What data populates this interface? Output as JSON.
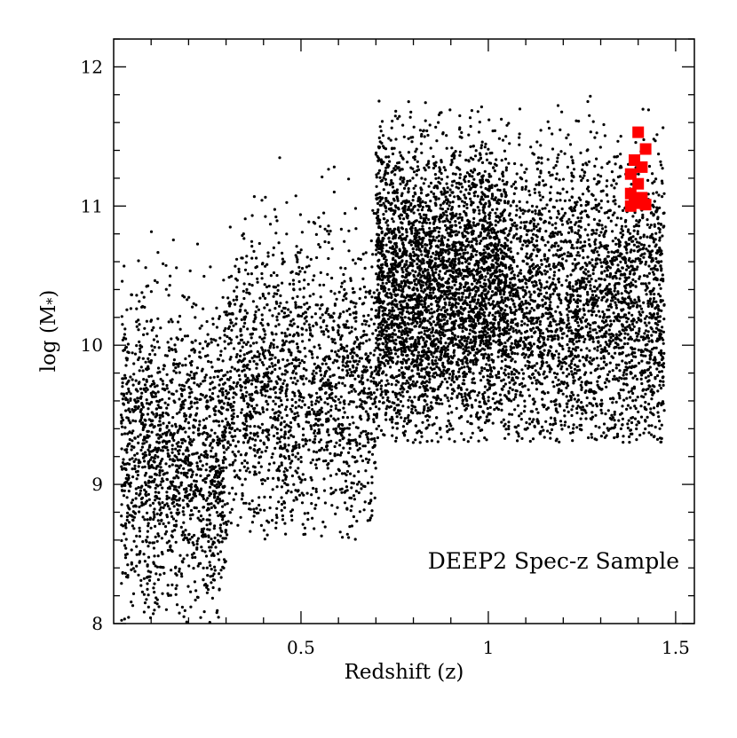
{
  "chart_data": {
    "type": "scatter",
    "xlabel": "Redshift (z)",
    "ylabel": "log (M*)",
    "xlim": [
      0.0,
      1.55
    ],
    "ylim": [
      8,
      12.2
    ],
    "x_ticks": [
      0.5,
      1,
      1.5
    ],
    "x_tick_labels": [
      "0.5",
      "1",
      "1.5"
    ],
    "y_ticks": [
      8,
      9,
      10,
      11,
      12
    ],
    "y_tick_labels": [
      "8",
      "9",
      "10",
      "11",
      "12"
    ],
    "annotation": "DEEP2 Spec-z Sample",
    "grid": false,
    "series": [
      {
        "color": "#000000",
        "marker": "small-dot",
        "point_count": 10000,
        "density_model": [
          {
            "z_range": [
              0.02,
              0.3
            ],
            "logM_range": [
              8.0,
              11.3
            ],
            "mean": 9.2,
            "weight": 0.16
          },
          {
            "z_range": [
              0.3,
              0.7
            ],
            "logM_range": [
              8.6,
              11.7
            ],
            "mean": 9.7,
            "weight": 0.18
          },
          {
            "z_range": [
              0.7,
              1.05
            ],
            "logM_range": [
              9.3,
              11.85
            ],
            "mean": 10.4,
            "weight": 0.38
          },
          {
            "z_range": [
              1.05,
              1.47
            ],
            "logM_range": [
              9.3,
              11.8
            ],
            "mean": 10.3,
            "weight": 0.28
          }
        ]
      },
      {
        "color": "#ff0000",
        "marker": "square",
        "points": [
          {
            "x": 1.4,
            "y": 11.53
          },
          {
            "x": 1.42,
            "y": 11.41
          },
          {
            "x": 1.39,
            "y": 11.33
          },
          {
            "x": 1.41,
            "y": 11.28
          },
          {
            "x": 1.38,
            "y": 11.23
          },
          {
            "x": 1.4,
            "y": 11.16
          },
          {
            "x": 1.38,
            "y": 11.09
          },
          {
            "x": 1.41,
            "y": 11.06
          },
          {
            "x": 1.39,
            "y": 11.02
          },
          {
            "x": 1.42,
            "y": 11.01
          },
          {
            "x": 1.38,
            "y": 11.0
          }
        ]
      }
    ]
  }
}
